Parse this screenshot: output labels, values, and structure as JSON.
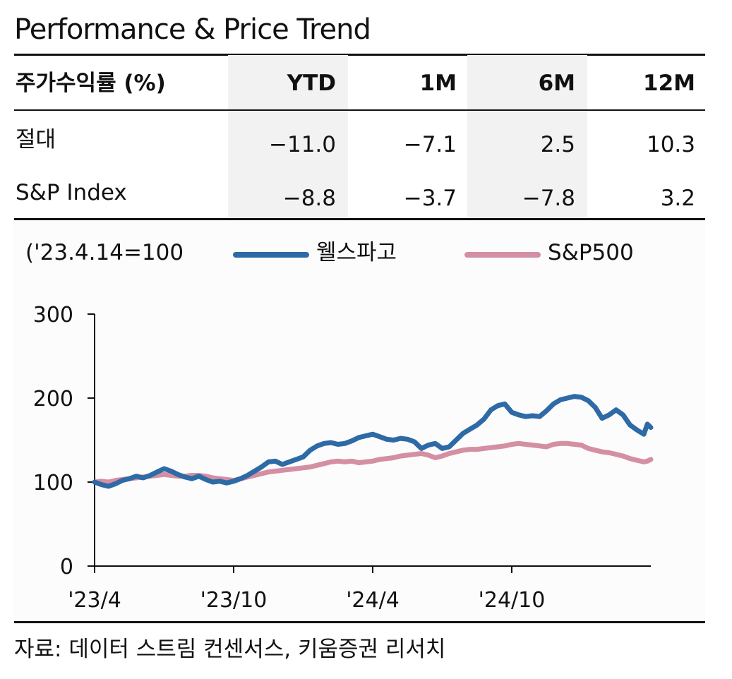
{
  "title": "Performance & Price Trend",
  "table": {
    "header": [
      "주가수익률 (%)",
      "YTD",
      "1M",
      "6M",
      "12M"
    ],
    "rows": [
      {
        "label": "절대",
        "values": [
          "−11.0",
          "−7.1",
          "2.5",
          "10.3"
        ]
      },
      {
        "label": "S&P Index",
        "values": [
          "−8.8",
          "−3.7",
          "−7.8",
          "3.2"
        ]
      }
    ]
  },
  "chart_note": "('23.4.14=100",
  "source": "자료: 데이터 스트림 컨센서스, 키움증권 리서치",
  "colors": {
    "wellsfargo": "#2e6aa6",
    "sp500": "#d48fa3"
  },
  "chart_data": {
    "type": "line",
    "title": "",
    "xlabel": "",
    "ylabel": "",
    "ylim": [
      0,
      300
    ],
    "yticks": [
      "0",
      "100",
      "200",
      "300"
    ],
    "xticks": [
      {
        "label": "'23/4",
        "t": 0
      },
      {
        "label": "'23/10",
        "t": 6
      },
      {
        "label": "'24/4",
        "t": 12
      },
      {
        "label": "'24/10",
        "t": 18
      }
    ],
    "xlim": [
      0,
      24
    ],
    "series": [
      {
        "name": "웰스파고",
        "x": [
          0,
          0.3,
          0.6,
          0.9,
          1.2,
          1.5,
          1.8,
          2.1,
          2.4,
          2.7,
          3.0,
          3.3,
          3.6,
          3.9,
          4.2,
          4.5,
          4.8,
          5.1,
          5.4,
          5.7,
          6.0,
          6.3,
          6.6,
          6.9,
          7.2,
          7.5,
          7.8,
          8.1,
          8.4,
          8.7,
          9.0,
          9.3,
          9.6,
          9.9,
          10.2,
          10.5,
          10.8,
          11.1,
          11.4,
          11.7,
          12.0,
          12.3,
          12.6,
          12.9,
          13.2,
          13.5,
          13.8,
          14.1,
          14.4,
          14.7,
          15.0,
          15.3,
          15.6,
          15.9,
          16.2,
          16.5,
          16.8,
          17.1,
          17.4,
          17.7,
          18.0,
          18.3,
          18.6,
          18.9,
          19.2,
          19.5,
          19.8,
          20.1,
          20.4,
          20.7,
          21.0,
          21.3,
          21.6,
          21.9,
          22.2,
          22.5,
          22.8,
          23.1,
          23.4,
          23.7,
          23.85,
          24.0
        ],
        "values": [
          100,
          97,
          95,
          98,
          102,
          104,
          107,
          105,
          108,
          112,
          116,
          113,
          109,
          106,
          104,
          107,
          103,
          100,
          101,
          99,
          101,
          104,
          108,
          113,
          118,
          124,
          125,
          121,
          124,
          127,
          130,
          138,
          143,
          146,
          147,
          145,
          146,
          149,
          153,
          155,
          157,
          154,
          151,
          150,
          152,
          151,
          148,
          140,
          144,
          146,
          140,
          142,
          150,
          158,
          163,
          168,
          175,
          186,
          191,
          193,
          183,
          180,
          178,
          179,
          178,
          185,
          193,
          198,
          200,
          202,
          201,
          197,
          189,
          176,
          180,
          186,
          180,
          168,
          162,
          157,
          169,
          165
        ]
      },
      {
        "name": "S&P500",
        "x": [
          0,
          0.3,
          0.6,
          0.9,
          1.2,
          1.5,
          1.8,
          2.1,
          2.4,
          2.7,
          3.0,
          3.3,
          3.6,
          3.9,
          4.2,
          4.5,
          4.8,
          5.1,
          5.4,
          5.7,
          6.0,
          6.3,
          6.6,
          6.9,
          7.2,
          7.5,
          7.8,
          8.1,
          8.4,
          8.7,
          9.0,
          9.3,
          9.6,
          9.9,
          10.2,
          10.5,
          10.8,
          11.1,
          11.4,
          11.7,
          12.0,
          12.3,
          12.6,
          12.9,
          13.2,
          13.5,
          13.8,
          14.1,
          14.4,
          14.7,
          15.0,
          15.3,
          15.6,
          15.9,
          16.2,
          16.5,
          16.8,
          17.1,
          17.4,
          17.7,
          18.0,
          18.3,
          18.6,
          18.9,
          19.2,
          19.5,
          19.8,
          20.1,
          20.4,
          20.7,
          21.0,
          21.3,
          21.6,
          21.9,
          22.2,
          22.5,
          22.8,
          23.1,
          23.4,
          23.7,
          23.85,
          24.0
        ],
        "values": [
          100,
          101,
          100,
          102,
          103,
          104,
          105,
          106,
          107,
          108,
          109,
          108,
          107,
          107,
          108,
          108,
          107,
          105,
          104,
          103,
          102,
          104,
          106,
          108,
          110,
          112,
          113,
          114,
          115,
          116,
          117,
          118,
          120,
          122,
          124,
          125,
          124,
          125,
          123,
          124,
          125,
          127,
          128,
          129,
          131,
          132,
          133,
          134,
          132,
          129,
          131,
          134,
          136,
          138,
          139,
          139,
          140,
          141,
          142,
          143,
          145,
          146,
          145,
          144,
          143,
          142,
          145,
          146,
          146,
          145,
          144,
          140,
          138,
          136,
          135,
          133,
          131,
          128,
          126,
          124,
          125,
          127
        ]
      }
    ]
  }
}
